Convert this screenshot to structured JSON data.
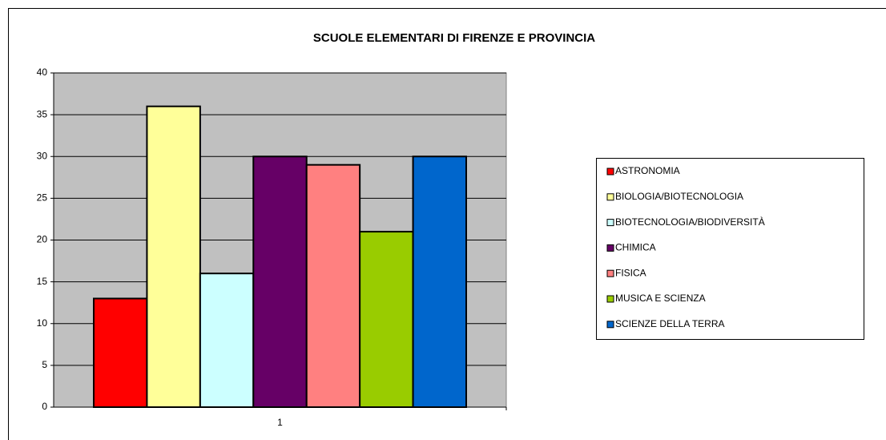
{
  "chart_data": {
    "type": "bar",
    "title": "SCUOLE ELEMENTARI DI FIRENZE E PROVINCIA",
    "categories": [
      "1"
    ],
    "series": [
      {
        "name": "ASTRONOMIA",
        "color": "#ff0000",
        "values": [
          13
        ]
      },
      {
        "name": "BIOLOGIA/BIOTECNOLOGIA",
        "color": "#ffff99",
        "values": [
          36
        ]
      },
      {
        "name": "BIOTECNOLOGIA/BIODIVERSITÀ",
        "color": "#ccffff",
        "values": [
          16
        ]
      },
      {
        "name": "CHIMICA",
        "color": "#660066",
        "values": [
          30
        ]
      },
      {
        "name": "FISICA",
        "color": "#ff8080",
        "values": [
          29
        ]
      },
      {
        "name": "MUSICA E SCIENZA",
        "color": "#99cc00",
        "values": [
          21
        ]
      },
      {
        "name": "SCIENZE DELLA TERRA",
        "color": "#0066cc",
        "values": [
          30
        ]
      }
    ],
    "ylim": [
      0,
      40
    ],
    "yticks": [
      0,
      5,
      10,
      15,
      20,
      25,
      30,
      35,
      40
    ],
    "grid": true,
    "legend": "right"
  }
}
